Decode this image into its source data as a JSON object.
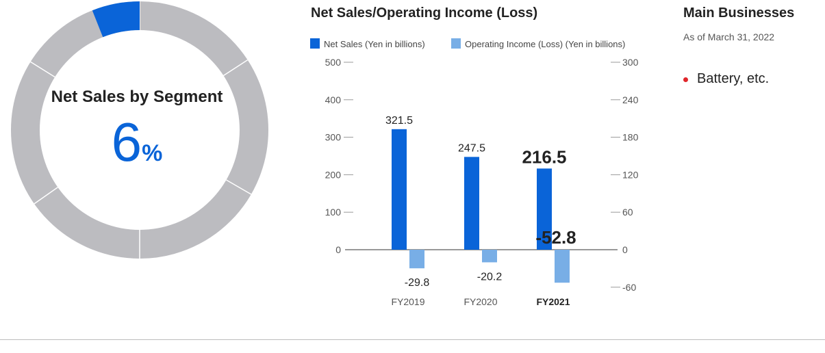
{
  "donut": {
    "title": "Net Sales by Segment",
    "value": "6",
    "unit": "%",
    "share_percent": 6,
    "colors": {
      "highlight": "#0a64d8",
      "rest": "#bcbcc0"
    }
  },
  "chart_data": {
    "type": "bar",
    "title": "Net Sales/Operating Income (Loss)",
    "categories": [
      "FY2019",
      "FY2020",
      "FY2021"
    ],
    "highlight_category": "FY2021",
    "series": [
      {
        "name": "Net Sales (Yen in billions)",
        "axis": "left",
        "values": [
          321.5,
          247.5,
          216.5
        ],
        "labels": [
          "321.5",
          "247.5",
          "216.5"
        ],
        "color": "#0a64d8"
      },
      {
        "name": "Operating Income (Loss) (Yen in billions)",
        "axis": "right",
        "values": [
          -29.8,
          -20.2,
          -52.8
        ],
        "labels": [
          "-29.8",
          "-20.2",
          "-52.8"
        ],
        "color": "#78aee6"
      }
    ],
    "y_left": {
      "min": -100,
      "max": 500,
      "ticks": [
        0,
        100,
        200,
        300,
        400,
        500
      ],
      "tick_labels": [
        "0",
        "100",
        "200",
        "300",
        "400",
        "500"
      ]
    },
    "y_right": {
      "min": -60,
      "max": 300,
      "ticks": [
        -60,
        0,
        60,
        120,
        180,
        240,
        300
      ],
      "tick_labels": [
        "-60",
        "0",
        "60",
        "120",
        "180",
        "240",
        "300"
      ]
    },
    "grid": false,
    "legend_position": "top-left"
  },
  "business": {
    "title": "Main Businesses",
    "date": "As of March 31, 2022",
    "items": [
      "Battery, etc."
    ]
  }
}
